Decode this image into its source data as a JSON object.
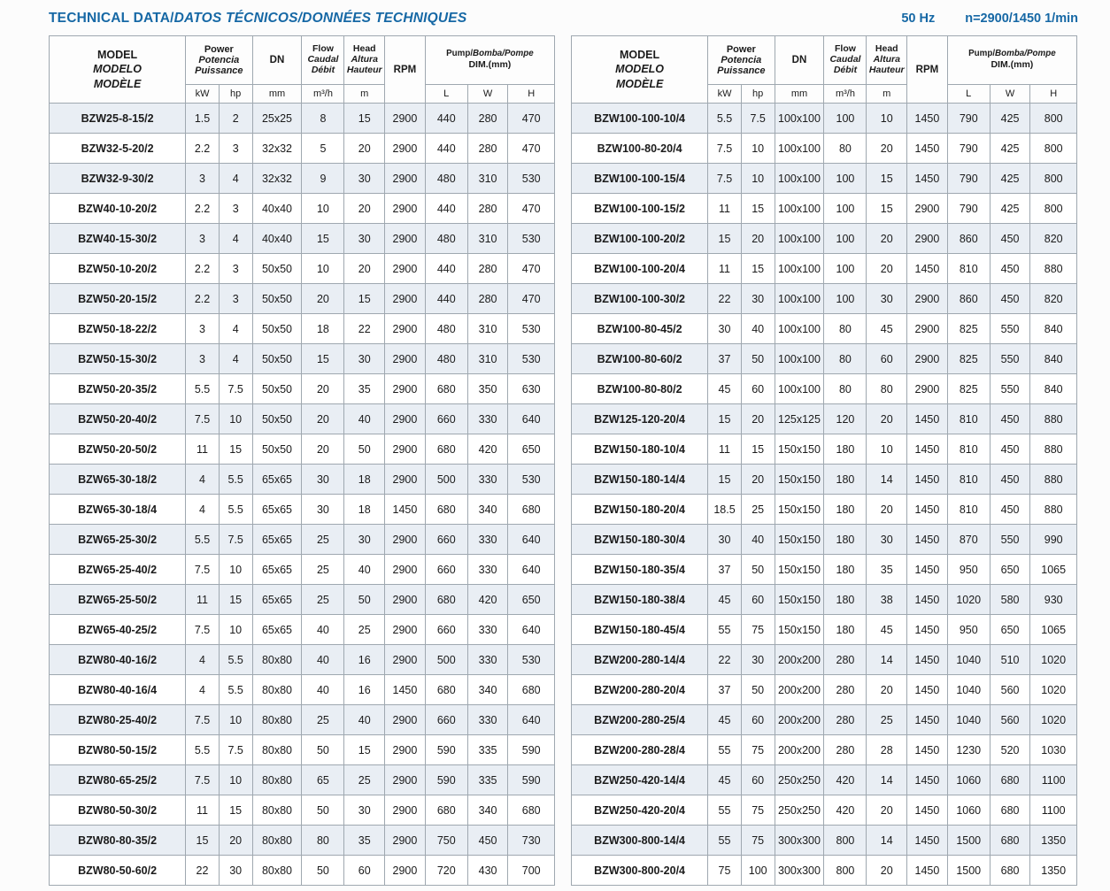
{
  "header": {
    "title_parts": [
      "TECHNICAL DATA/",
      "DATOS TÉCNICOS/",
      "DONNÉES TECHNIQUES"
    ],
    "frequency": "50 Hz",
    "speed": "n=2900/1450 1/min"
  },
  "colors": {
    "accent_blue": "#1668a5",
    "row_alt": "#e9eef4",
    "grid_border": "#9fa8b0"
  },
  "columns": {
    "model": [
      "MODEL",
      "MODELO",
      "MODÈLE"
    ],
    "power": [
      "Power",
      "Potencia",
      "Puissance"
    ],
    "dn": "DN",
    "flow": [
      "Flow",
      "Caudal",
      "Débit"
    ],
    "head": [
      "Head",
      "Altura",
      "Hauteur"
    ],
    "rpm": "RPM",
    "dim_parts": [
      "Pump/",
      "Bomba/",
      "Pompe"
    ],
    "dim_line2": "DIM.(mm)",
    "units": {
      "kw": "kW",
      "hp": "hp",
      "dn": "mm",
      "flow": "m³/h",
      "head": "m",
      "l": "L",
      "w": "W",
      "h": "H"
    }
  },
  "tables": {
    "left": [
      [
        "BZW25-8-15/2",
        "1.5",
        "2",
        "25x25",
        "8",
        "15",
        "2900",
        "440",
        "280",
        "470"
      ],
      [
        "BZW32-5-20/2",
        "2.2",
        "3",
        "32x32",
        "5",
        "20",
        "2900",
        "440",
        "280",
        "470"
      ],
      [
        "BZW32-9-30/2",
        "3",
        "4",
        "32x32",
        "9",
        "30",
        "2900",
        "480",
        "310",
        "530"
      ],
      [
        "BZW40-10-20/2",
        "2.2",
        "3",
        "40x40",
        "10",
        "20",
        "2900",
        "440",
        "280",
        "470"
      ],
      [
        "BZW40-15-30/2",
        "3",
        "4",
        "40x40",
        "15",
        "30",
        "2900",
        "480",
        "310",
        "530"
      ],
      [
        "BZW50-10-20/2",
        "2.2",
        "3",
        "50x50",
        "10",
        "20",
        "2900",
        "440",
        "280",
        "470"
      ],
      [
        "BZW50-20-15/2",
        "2.2",
        "3",
        "50x50",
        "20",
        "15",
        "2900",
        "440",
        "280",
        "470"
      ],
      [
        "BZW50-18-22/2",
        "3",
        "4",
        "50x50",
        "18",
        "22",
        "2900",
        "480",
        "310",
        "530"
      ],
      [
        "BZW50-15-30/2",
        "3",
        "4",
        "50x50",
        "15",
        "30",
        "2900",
        "480",
        "310",
        "530"
      ],
      [
        "BZW50-20-35/2",
        "5.5",
        "7.5",
        "50x50",
        "20",
        "35",
        "2900",
        "680",
        "350",
        "630"
      ],
      [
        "BZW50-20-40/2",
        "7.5",
        "10",
        "50x50",
        "20",
        "40",
        "2900",
        "660",
        "330",
        "640"
      ],
      [
        "BZW50-20-50/2",
        "11",
        "15",
        "50x50",
        "20",
        "50",
        "2900",
        "680",
        "420",
        "650"
      ],
      [
        "BZW65-30-18/2",
        "4",
        "5.5",
        "65x65",
        "30",
        "18",
        "2900",
        "500",
        "330",
        "530"
      ],
      [
        "BZW65-30-18/4",
        "4",
        "5.5",
        "65x65",
        "30",
        "18",
        "1450",
        "680",
        "340",
        "680"
      ],
      [
        "BZW65-25-30/2",
        "5.5",
        "7.5",
        "65x65",
        "25",
        "30",
        "2900",
        "660",
        "330",
        "640"
      ],
      [
        "BZW65-25-40/2",
        "7.5",
        "10",
        "65x65",
        "25",
        "40",
        "2900",
        "660",
        "330",
        "640"
      ],
      [
        "BZW65-25-50/2",
        "11",
        "15",
        "65x65",
        "25",
        "50",
        "2900",
        "680",
        "420",
        "650"
      ],
      [
        "BZW65-40-25/2",
        "7.5",
        "10",
        "65x65",
        "40",
        "25",
        "2900",
        "660",
        "330",
        "640"
      ],
      [
        "BZW80-40-16/2",
        "4",
        "5.5",
        "80x80",
        "40",
        "16",
        "2900",
        "500",
        "330",
        "530"
      ],
      [
        "BZW80-40-16/4",
        "4",
        "5.5",
        "80x80",
        "40",
        "16",
        "1450",
        "680",
        "340",
        "680"
      ],
      [
        "BZW80-25-40/2",
        "7.5",
        "10",
        "80x80",
        "25",
        "40",
        "2900",
        "660",
        "330",
        "640"
      ],
      [
        "BZW80-50-15/2",
        "5.5",
        "7.5",
        "80x80",
        "50",
        "15",
        "2900",
        "590",
        "335",
        "590"
      ],
      [
        "BZW80-65-25/2",
        "7.5",
        "10",
        "80x80",
        "65",
        "25",
        "2900",
        "590",
        "335",
        "590"
      ],
      [
        "BZW80-50-30/2",
        "11",
        "15",
        "80x80",
        "50",
        "30",
        "2900",
        "680",
        "340",
        "680"
      ],
      [
        "BZW80-80-35/2",
        "15",
        "20",
        "80x80",
        "80",
        "35",
        "2900",
        "750",
        "450",
        "730"
      ],
      [
        "BZW80-50-60/2",
        "22",
        "30",
        "80x80",
        "50",
        "60",
        "2900",
        "720",
        "430",
        "700"
      ]
    ],
    "right": [
      [
        "BZW100-100-10/4",
        "5.5",
        "7.5",
        "100x100",
        "100",
        "10",
        "1450",
        "790",
        "425",
        "800"
      ],
      [
        "BZW100-80-20/4",
        "7.5",
        "10",
        "100x100",
        "80",
        "20",
        "1450",
        "790",
        "425",
        "800"
      ],
      [
        "BZW100-100-15/4",
        "7.5",
        "10",
        "100x100",
        "100",
        "15",
        "1450",
        "790",
        "425",
        "800"
      ],
      [
        "BZW100-100-15/2",
        "11",
        "15",
        "100x100",
        "100",
        "15",
        "2900",
        "790",
        "425",
        "800"
      ],
      [
        "BZW100-100-20/2",
        "15",
        "20",
        "100x100",
        "100",
        "20",
        "2900",
        "860",
        "450",
        "820"
      ],
      [
        "BZW100-100-20/4",
        "11",
        "15",
        "100x100",
        "100",
        "20",
        "1450",
        "810",
        "450",
        "880"
      ],
      [
        "BZW100-100-30/2",
        "22",
        "30",
        "100x100",
        "100",
        "30",
        "2900",
        "860",
        "450",
        "820"
      ],
      [
        "BZW100-80-45/2",
        "30",
        "40",
        "100x100",
        "80",
        "45",
        "2900",
        "825",
        "550",
        "840"
      ],
      [
        "BZW100-80-60/2",
        "37",
        "50",
        "100x100",
        "80",
        "60",
        "2900",
        "825",
        "550",
        "840"
      ],
      [
        "BZW100-80-80/2",
        "45",
        "60",
        "100x100",
        "80",
        "80",
        "2900",
        "825",
        "550",
        "840"
      ],
      [
        "BZW125-120-20/4",
        "15",
        "20",
        "125x125",
        "120",
        "20",
        "1450",
        "810",
        "450",
        "880"
      ],
      [
        "BZW150-180-10/4",
        "11",
        "15",
        "150x150",
        "180",
        "10",
        "1450",
        "810",
        "450",
        "880"
      ],
      [
        "BZW150-180-14/4",
        "15",
        "20",
        "150x150",
        "180",
        "14",
        "1450",
        "810",
        "450",
        "880"
      ],
      [
        "BZW150-180-20/4",
        "18.5",
        "25",
        "150x150",
        "180",
        "20",
        "1450",
        "810",
        "450",
        "880"
      ],
      [
        "BZW150-180-30/4",
        "30",
        "40",
        "150x150",
        "180",
        "30",
        "1450",
        "870",
        "550",
        "990"
      ],
      [
        "BZW150-180-35/4",
        "37",
        "50",
        "150x150",
        "180",
        "35",
        "1450",
        "950",
        "650",
        "1065"
      ],
      [
        "BZW150-180-38/4",
        "45",
        "60",
        "150x150",
        "180",
        "38",
        "1450",
        "1020",
        "580",
        "930"
      ],
      [
        "BZW150-180-45/4",
        "55",
        "75",
        "150x150",
        "180",
        "45",
        "1450",
        "950",
        "650",
        "1065"
      ],
      [
        "BZW200-280-14/4",
        "22",
        "30",
        "200x200",
        "280",
        "14",
        "1450",
        "1040",
        "510",
        "1020"
      ],
      [
        "BZW200-280-20/4",
        "37",
        "50",
        "200x200",
        "280",
        "20",
        "1450",
        "1040",
        "560",
        "1020"
      ],
      [
        "BZW200-280-25/4",
        "45",
        "60",
        "200x200",
        "280",
        "25",
        "1450",
        "1040",
        "560",
        "1020"
      ],
      [
        "BZW200-280-28/4",
        "55",
        "75",
        "200x200",
        "280",
        "28",
        "1450",
        "1230",
        "520",
        "1030"
      ],
      [
        "BZW250-420-14/4",
        "45",
        "60",
        "250x250",
        "420",
        "14",
        "1450",
        "1060",
        "680",
        "1100"
      ],
      [
        "BZW250-420-20/4",
        "55",
        "75",
        "250x250",
        "420",
        "20",
        "1450",
        "1060",
        "680",
        "1100"
      ],
      [
        "BZW300-800-14/4",
        "55",
        "75",
        "300x300",
        "800",
        "14",
        "1450",
        "1500",
        "680",
        "1350"
      ],
      [
        "BZW300-800-20/4",
        "75",
        "100",
        "300x300",
        "800",
        "20",
        "1450",
        "1500",
        "680",
        "1350"
      ]
    ]
  }
}
